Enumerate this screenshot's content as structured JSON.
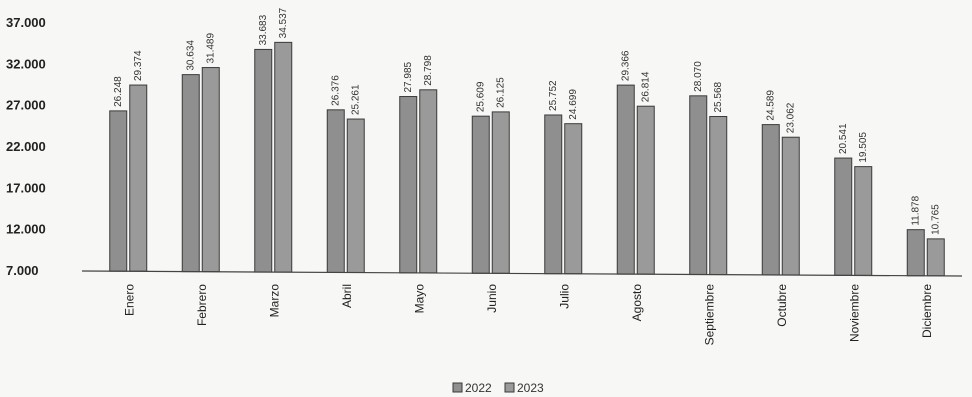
{
  "chart_data": {
    "type": "bar",
    "title": "",
    "xlabel": "",
    "ylabel": "",
    "ylim": [
      7000,
      37000
    ],
    "yticks": [
      "37.000",
      "32.000",
      "27.000",
      "22.000",
      "17.000",
      "12.000",
      "7.000"
    ],
    "ytick_values": [
      37000,
      32000,
      27000,
      22000,
      17000,
      12000,
      7000
    ],
    "categories": [
      "Enero",
      "Febrero",
      "Marzo",
      "Abril",
      "Mayo",
      "Junio",
      "Julio",
      "Agosto",
      "Septiembre",
      "Octubre",
      "Noviembre",
      "Diciembre"
    ],
    "series": [
      {
        "name": "2022",
        "values": [
          26248,
          30634,
          33683,
          26376,
          27985,
          25609,
          25752,
          29366,
          28070,
          24589,
          20541,
          11878
        ],
        "labels": [
          "26.248",
          "30.634",
          "33.683",
          "26.376",
          "27.985",
          "25.609",
          "25.752",
          "29.366",
          "28.070",
          "24.589",
          "20.541",
          "11.878"
        ],
        "color": "#8f8f8f"
      },
      {
        "name": "2023",
        "values": [
          29374,
          31489,
          34537,
          25261,
          28798,
          26125,
          24699,
          26814,
          25568,
          23062,
          19505,
          10765
        ],
        "labels": [
          "29.374",
          "31.489",
          "34.537",
          "25.261",
          "28.798",
          "26.125",
          "24.699",
          "26.814",
          "25.568",
          "23.062",
          "19.505",
          "10.765"
        ],
        "color": "#9a9a9a"
      }
    ],
    "grid": false,
    "legend_position": "bottom-center"
  }
}
